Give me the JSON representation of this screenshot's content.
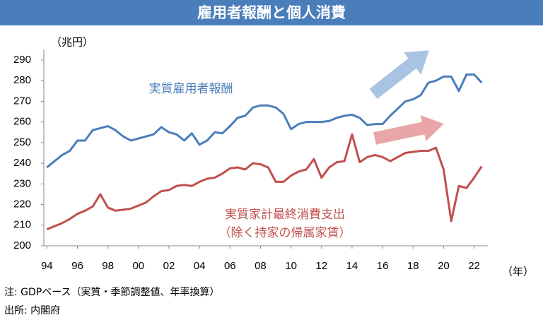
{
  "chart_data": {
    "type": "line",
    "title": "雇用者報酬と個人消費",
    "y_unit": "（兆円）",
    "x_unit": "（年）",
    "annotations": [
      "（除く持家の帰属家賃）"
    ],
    "notes": [
      "注: GDPベース（実質・季節調整値、年率換算）",
      "出所: 内閣府"
    ],
    "x": [
      1994,
      1994.5,
      1995,
      1995.5,
      1996,
      1996.5,
      1997,
      1997.5,
      1998,
      1998.5,
      1999,
      1999.5,
      2000,
      2000.5,
      2001,
      2001.5,
      2002,
      2002.5,
      2003,
      2003.5,
      2004,
      2004.5,
      2005,
      2005.5,
      2006,
      2006.5,
      2007,
      2007.5,
      2008,
      2008.5,
      2009,
      2009.5,
      2010,
      2010.5,
      2011,
      2011.5,
      2012,
      2012.5,
      2013,
      2013.5,
      2014,
      2014.5,
      2015,
      2015.5,
      2016,
      2016.5,
      2017,
      2017.5,
      2018,
      2018.5,
      2019,
      2019.5,
      2020,
      2020.5,
      2021,
      2021.5,
      2022,
      2022.5
    ],
    "series": [
      {
        "name": "実質雇用者報酬",
        "color": "#4a7ebb",
        "values": [
          238,
          241,
          244,
          246,
          251,
          251,
          256,
          257,
          258,
          256,
          253,
          251,
          252,
          253,
          254,
          257.5,
          255,
          254,
          251,
          254.5,
          249,
          251,
          255,
          254.5,
          258,
          262,
          263,
          267,
          268,
          268,
          267,
          264,
          256.5,
          259,
          260,
          260,
          260,
          260.5,
          262,
          263,
          263.5,
          262,
          258.5,
          259,
          259,
          263,
          266.5,
          270,
          271,
          273,
          279,
          280,
          282,
          282,
          275,
          283,
          283,
          279
        ]
      },
      {
        "name": "実質家計最終消費支出",
        "color": "#c0504d",
        "values": [
          208,
          209.5,
          211,
          213,
          215.5,
          217,
          219,
          225,
          218.5,
          217,
          217.5,
          218,
          219.5,
          221,
          224,
          226.5,
          227,
          229,
          229.5,
          229,
          231,
          232.5,
          233,
          235,
          237.5,
          238,
          237,
          240,
          239.5,
          238,
          231,
          231,
          234,
          236,
          237,
          242,
          233,
          238,
          240.5,
          241,
          254,
          240.5,
          243,
          244,
          243,
          241,
          243,
          245,
          245.5,
          246,
          246,
          247.5,
          237,
          212,
          229,
          228,
          233,
          238.5
        ]
      }
    ],
    "xlim": [
      1993.8,
      2022.9
    ],
    "xticks": [
      {
        "value": 1994,
        "label": "94"
      },
      {
        "value": 1996,
        "label": "96"
      },
      {
        "value": 1998,
        "label": "98"
      },
      {
        "value": 2000,
        "label": "00"
      },
      {
        "value": 2002,
        "label": "02"
      },
      {
        "value": 2004,
        "label": "04"
      },
      {
        "value": 2006,
        "label": "06"
      },
      {
        "value": 2008,
        "label": "08"
      },
      {
        "value": 2010,
        "label": "10"
      },
      {
        "value": 2012,
        "label": "12"
      },
      {
        "value": 2014,
        "label": "14"
      },
      {
        "value": 2016,
        "label": "16"
      },
      {
        "value": 2018,
        "label": "18"
      },
      {
        "value": 2020,
        "label": "20"
      },
      {
        "value": 2022,
        "label": "22"
      }
    ],
    "ylim": [
      200,
      290
    ],
    "yticks": [
      200,
      210,
      220,
      230,
      240,
      250,
      260,
      270,
      280,
      290
    ],
    "grid": false
  }
}
